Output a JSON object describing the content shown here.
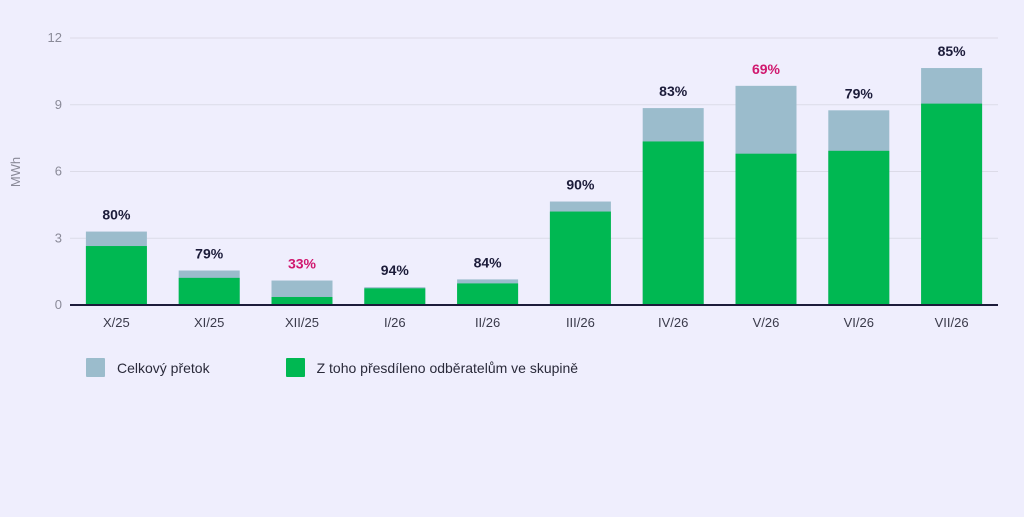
{
  "chart_data": {
    "type": "bar",
    "stacked": "overlay",
    "ylabel": "MWh",
    "ylim": [
      0,
      12
    ],
    "yticks": [
      0,
      3,
      6,
      9,
      12
    ],
    "grid": true,
    "legend_position": "bottom-left",
    "categories": [
      "X/25",
      "XI/25",
      "XII/25",
      "I/26",
      "II/26",
      "III/26",
      "IV/26",
      "V/26",
      "VI/26",
      "VII/26"
    ],
    "series": [
      {
        "name": "Celkový přetok",
        "color": "#9bbccc",
        "values": [
          3.3,
          1.55,
          1.1,
          0.8,
          1.15,
          4.65,
          8.85,
          9.85,
          8.75,
          10.65
        ]
      },
      {
        "name": "Z toho přesdíleno odběratelům ve skupině",
        "color": "#00b852",
        "values": [
          2.65,
          1.22,
          0.36,
          0.75,
          0.97,
          4.2,
          7.35,
          6.8,
          6.93,
          9.05
        ]
      }
    ],
    "data_labels": [
      "80%",
      "79%",
      "33%",
      "94%",
      "84%",
      "90%",
      "83%",
      "69%",
      "79%",
      "85%"
    ],
    "data_label_colors": [
      "#1c1c3a",
      "#1c1c3a",
      "#d0176e",
      "#1c1c3a",
      "#1c1c3a",
      "#1c1c3a",
      "#1c1c3a",
      "#d0176e",
      "#1c1c3a",
      "#1c1c3a"
    ],
    "colors": {
      "axis": "#1c1c3a",
      "grid": "#dcdbe8",
      "tick_text": "#8a8a98"
    }
  }
}
